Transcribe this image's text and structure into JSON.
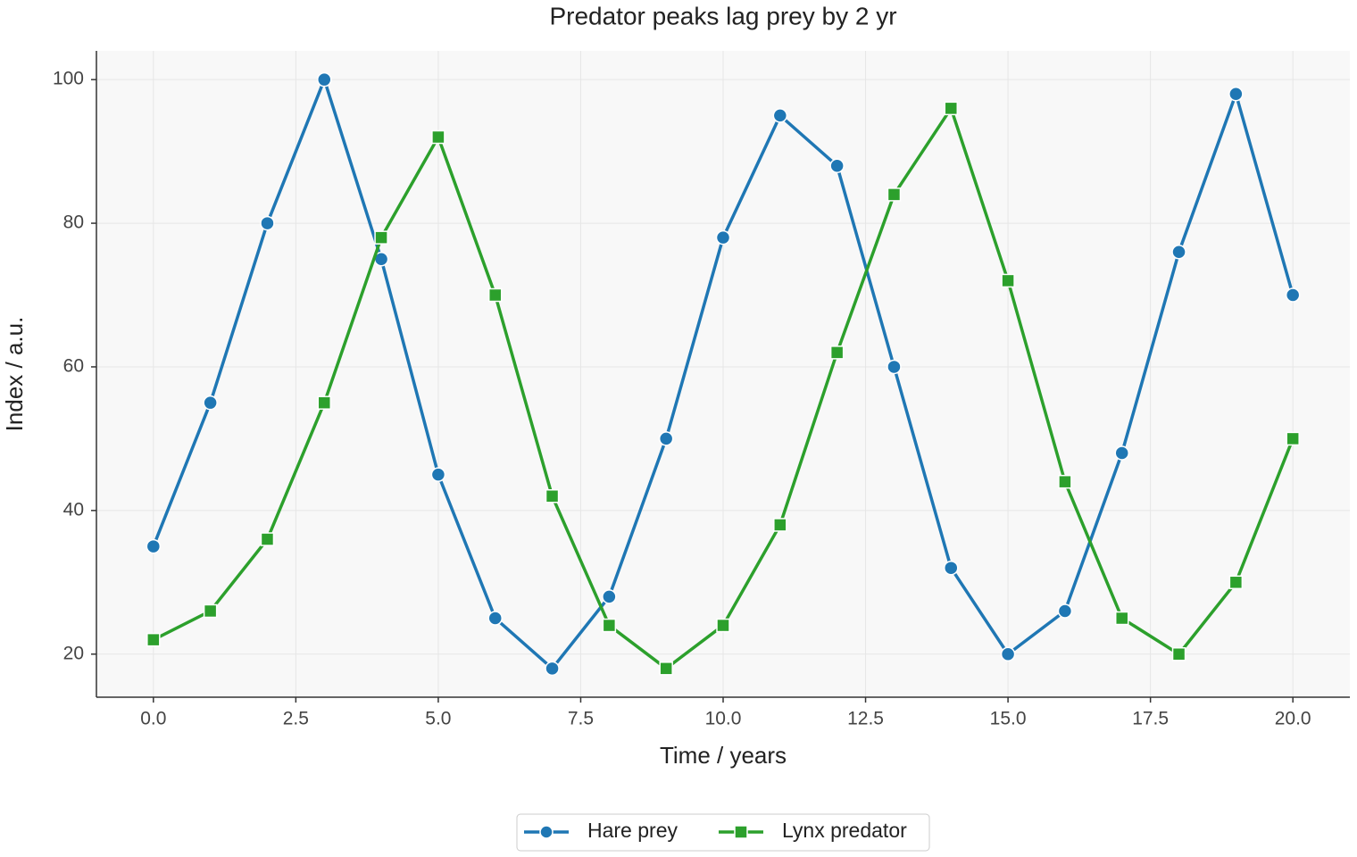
{
  "chart_data": {
    "type": "line",
    "title": "Predator peaks lag prey by 2 yr",
    "xlabel": "Time / years",
    "ylabel": "Index / a.u.",
    "x": [
      0,
      1,
      2,
      3,
      4,
      5,
      6,
      7,
      8,
      9,
      10,
      11,
      12,
      13,
      14,
      15,
      16,
      17,
      18,
      19,
      20
    ],
    "series": [
      {
        "name": "Hare prey",
        "color": "#1f77b4",
        "marker": "circle",
        "values": [
          35,
          55,
          80,
          100,
          75,
          45,
          25,
          18,
          28,
          50,
          78,
          95,
          88,
          60,
          32,
          20,
          26,
          48,
          76,
          98,
          70
        ]
      },
      {
        "name": "Lynx predator",
        "color": "#2ca02c",
        "marker": "square",
        "values": [
          22,
          26,
          36,
          55,
          78,
          92,
          70,
          42,
          24,
          18,
          24,
          38,
          62,
          84,
          96,
          72,
          44,
          25,
          20,
          30,
          50
        ]
      }
    ],
    "xlim": [
      -1,
      21
    ],
    "ylim": [
      14,
      104
    ],
    "xticks": [
      {
        "value": 0,
        "label": "0.0"
      },
      2.5,
      {
        "value": 5,
        "label": "5.0"
      },
      7.5,
      {
        "value": 10,
        "label": "10.0"
      },
      12.5,
      {
        "value": 15,
        "label": "15.0"
      },
      17.5,
      {
        "value": 20,
        "label": "20.0"
      }
    ],
    "yticks": [
      20,
      40,
      60,
      80,
      100
    ],
    "grid": true,
    "legend": "bottom"
  }
}
